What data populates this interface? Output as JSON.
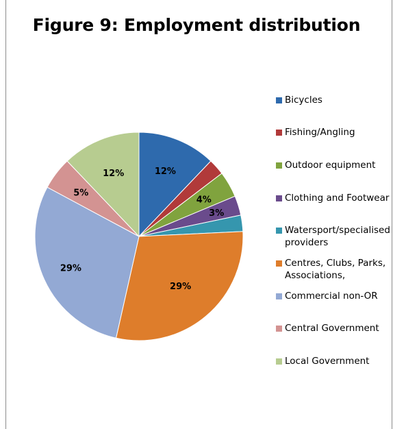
{
  "chart_data": {
    "type": "pie",
    "title": "Figure 9: Employment distribution",
    "legend_position": "right",
    "start_angle_deg": 0,
    "direction": "clockwise",
    "slices": [
      {
        "name": "Bicycles",
        "value": 12,
        "label": "12%",
        "color": "#2e6aad"
      },
      {
        "name": "Fishing/Angling",
        "value": 2.5,
        "label": "",
        "color": "#b13a3a"
      },
      {
        "name": "Outdoor equipment",
        "value": 4,
        "label": "4%",
        "color": "#80a33e"
      },
      {
        "name": "Clothing and Footwear",
        "value": 3,
        "label": "3%",
        "color": "#6a4b8c"
      },
      {
        "name": "Watersport/specialised providers",
        "value": 2.5,
        "label": "",
        "color": "#3596ae"
      },
      {
        "name": "Centres, Clubs, Parks, Associations,",
        "value": 29,
        "label": "29%",
        "color": "#de7d2b"
      },
      {
        "name": "Commercial non-OR",
        "value": 29,
        "label": "29%",
        "color": "#93a9d4"
      },
      {
        "name": "Central Government",
        "value": 5,
        "label": "5%",
        "color": "#d39392"
      },
      {
        "name": "Local Government",
        "value": 12,
        "label": "12%",
        "color": "#b7cc90"
      }
    ]
  }
}
